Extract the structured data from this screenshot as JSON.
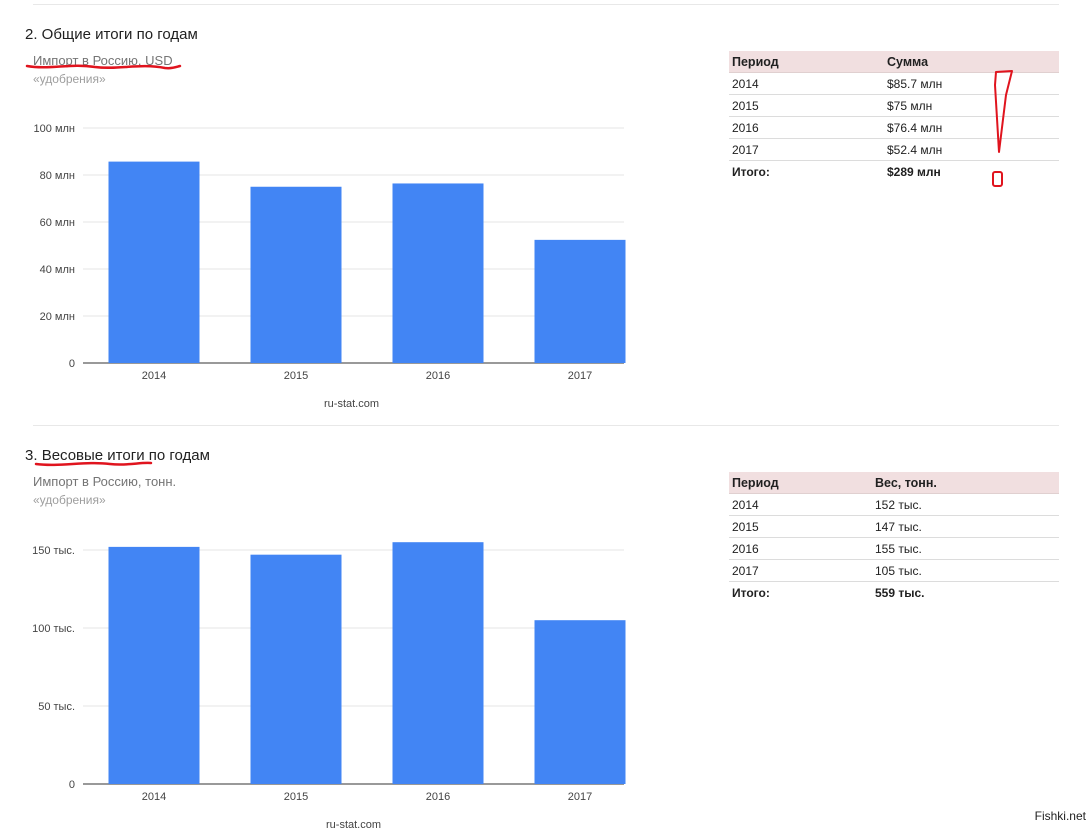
{
  "section1": {
    "title": "2. Общие итоги по годам",
    "subtitle": "Импорт в Россию, USD",
    "caption": "«удобрения»",
    "credit": "ru-stat.com",
    "table": {
      "headers": [
        "Период",
        "Сумма"
      ],
      "rows": [
        [
          "2014",
          "$85.7 млн"
        ],
        [
          "2015",
          "$75 млн"
        ],
        [
          "2016",
          "$76.4 млн"
        ],
        [
          "2017",
          "$52.4 млн"
        ]
      ],
      "total": [
        "Итого:",
        "$289 млн"
      ]
    }
  },
  "section2": {
    "title_num": "3. ",
    "title_underlined": "Весовые итоги",
    "title_rest": " по годам",
    "subtitle": "Импорт в Россию, тонн.",
    "caption": "«удобрения»",
    "credit": "ru-stat.com",
    "table": {
      "headers": [
        "Период",
        "Вес, тонн."
      ],
      "rows": [
        [
          "2014",
          "152 тыс."
        ],
        [
          "2015",
          "147 тыс."
        ],
        [
          "2016",
          "155 тыс."
        ],
        [
          "2017",
          "105 тыс."
        ]
      ],
      "total": [
        "Итого:",
        "559 тыс."
      ]
    }
  },
  "chart_data": [
    {
      "type": "bar",
      "categories": [
        "2014",
        "2015",
        "2016",
        "2017"
      ],
      "values": [
        85.7,
        75,
        76.4,
        52.4
      ],
      "ylim": [
        0,
        100
      ],
      "ticks": [
        0,
        20,
        40,
        60,
        80,
        100
      ],
      "tick_labels": [
        "0",
        "20 млн",
        "40 млн",
        "60 млн",
        "80 млн",
        "100 млн"
      ],
      "color": "#4285f4",
      "grid": true
    },
    {
      "type": "bar",
      "categories": [
        "2014",
        "2015",
        "2016",
        "2017"
      ],
      "values": [
        152,
        147,
        155,
        105
      ],
      "ylim": [
        0,
        150
      ],
      "ticks": [
        0,
        50,
        100,
        150
      ],
      "tick_labels": [
        "0",
        "50 тыс.",
        "100 тыс.",
        "150 тыс."
      ],
      "color": "#4285f4",
      "grid": true
    }
  ],
  "watermark": "Fishki.net",
  "annotation_color": "#e0141e"
}
